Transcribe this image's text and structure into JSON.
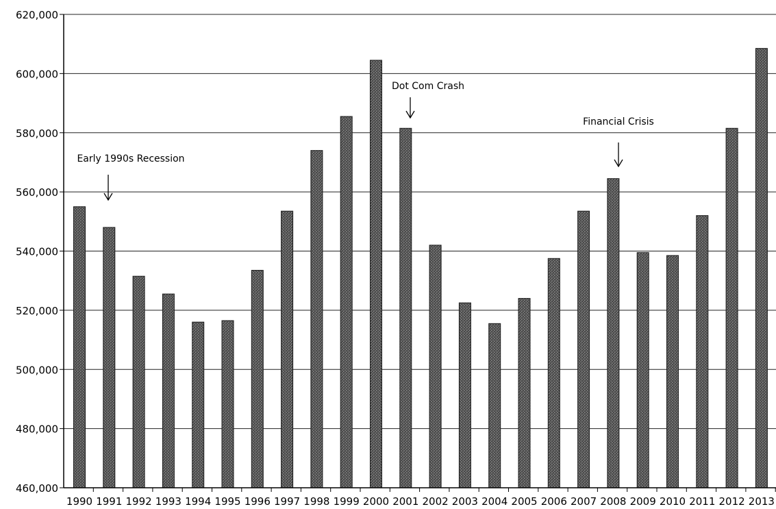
{
  "chart_data": {
    "type": "bar",
    "title": "",
    "xlabel": "",
    "ylabel": "",
    "categories": [
      "1990",
      "1991",
      "1992",
      "1993",
      "1994",
      "1995",
      "1996",
      "1997",
      "1998",
      "1999",
      "2000",
      "2001",
      "2002",
      "2003",
      "2004",
      "2005",
      "2006",
      "2007",
      "2008",
      "2009",
      "2010",
      "2011",
      "2012",
      "2013"
    ],
    "values": [
      555000,
      548000,
      531500,
      525500,
      516000,
      516500,
      533500,
      553500,
      574000,
      585500,
      604500,
      581500,
      542000,
      522500,
      515500,
      524000,
      537500,
      553500,
      564500,
      539500,
      538500,
      552000,
      581500,
      608500
    ],
    "ylim": [
      460000,
      620000
    ],
    "yticks": [
      460000,
      480000,
      500000,
      520000,
      540000,
      560000,
      580000,
      600000,
      620000
    ],
    "ytick_labels": [
      "460,000",
      "480,000",
      "500,000",
      "520,000",
      "540,000",
      "560,000",
      "580,000",
      "600,000",
      "620,000"
    ],
    "grid": true,
    "bar_color": "#555555",
    "annotations": [
      {
        "text": "Early 1990s Recession",
        "category": "1991"
      },
      {
        "text": "Dot Com Crash",
        "category": "2001"
      },
      {
        "text": "Financial Crisis",
        "category": "2008"
      }
    ]
  }
}
